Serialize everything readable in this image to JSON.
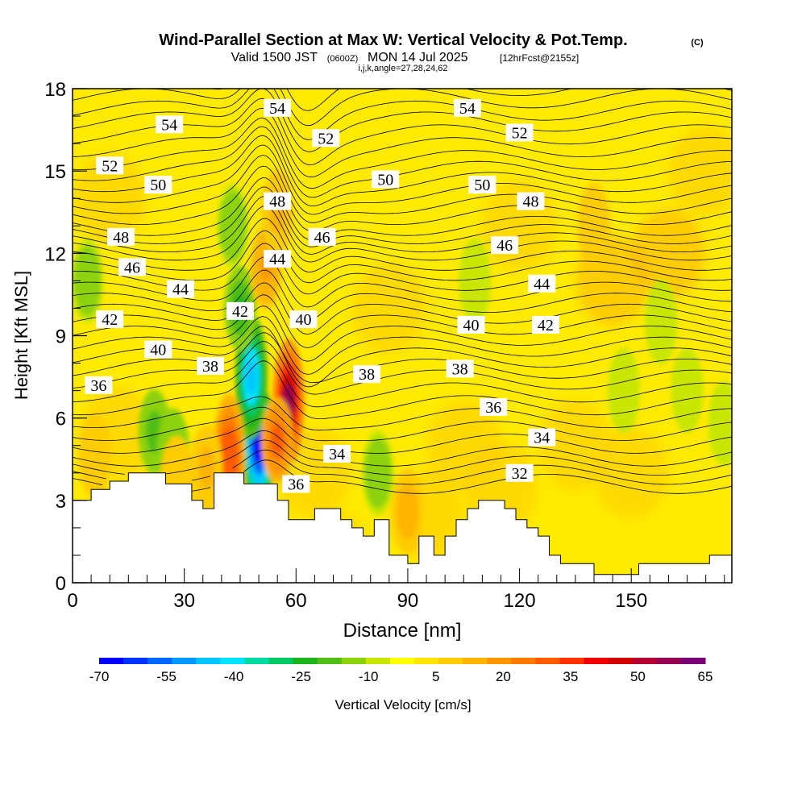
{
  "title": {
    "main": "Wind-Parallel Section at Max W: Vertical Velocity & Pot.Temp.",
    "copyright": "(C)",
    "valid_prefix": "Valid 1500 JST",
    "valid_utc": "(0600Z)",
    "valid_date": "MON 14 Jul 2025",
    "forecast": "[12hrFcst@2155z]",
    "grid_info": "i,j,k,angle=27,28,24,62"
  },
  "chart_data": {
    "type": "heatmap",
    "xlabel": "Distance [nm]",
    "ylabel": "Height [Kft MSL]",
    "xlim": [
      0,
      177
    ],
    "ylim": [
      0,
      18
    ],
    "x_ticks": [
      0,
      30,
      60,
      90,
      120,
      150
    ],
    "y_ticks": [
      0,
      3,
      6,
      9,
      12,
      15,
      18
    ],
    "colorbar": {
      "label": "Vertical Velocity [cm/s]",
      "min": -70,
      "max": 65,
      "ticks": [
        -70,
        -55,
        -40,
        -25,
        -10,
        5,
        20,
        35,
        50,
        65
      ],
      "colors": [
        "#0000ff",
        "#0033ff",
        "#0066ff",
        "#0099ff",
        "#00c8ff",
        "#00e5ff",
        "#00dca0",
        "#00c864",
        "#1eb41e",
        "#50be14",
        "#8cd20a",
        "#c8e600",
        "#ffff00",
        "#ffe600",
        "#ffcc00",
        "#ffb400",
        "#ff9600",
        "#ff7800",
        "#ff5a00",
        "#ff3200",
        "#f00000",
        "#d20000",
        "#b40032",
        "#960050",
        "#780078"
      ]
    },
    "terrain_kft": [
      [
        0,
        3
      ],
      [
        5,
        3
      ],
      [
        5,
        3.4
      ],
      [
        10,
        3.4
      ],
      [
        10,
        3.7
      ],
      [
        15,
        3.7
      ],
      [
        15,
        4
      ],
      [
        25,
        4
      ],
      [
        25,
        3.6
      ],
      [
        32,
        3.6
      ],
      [
        32,
        3
      ],
      [
        35,
        3
      ],
      [
        35,
        2.7
      ],
      [
        38,
        2.7
      ],
      [
        38,
        4
      ],
      [
        46,
        4
      ],
      [
        46,
        3.6
      ],
      [
        55,
        3.6
      ],
      [
        55,
        3
      ],
      [
        58,
        3
      ],
      [
        58,
        2.3
      ],
      [
        65,
        2.3
      ],
      [
        65,
        2.7
      ],
      [
        72,
        2.7
      ],
      [
        72,
        2.3
      ],
      [
        75,
        2.3
      ],
      [
        75,
        2
      ],
      [
        78,
        2
      ],
      [
        78,
        1.7
      ],
      [
        81,
        1.7
      ],
      [
        81,
        2.3
      ],
      [
        85,
        2.3
      ],
      [
        85,
        1
      ],
      [
        90,
        1
      ],
      [
        90,
        0.7
      ],
      [
        93,
        0.7
      ],
      [
        93,
        1.7
      ],
      [
        97,
        1.7
      ],
      [
        97,
        1
      ],
      [
        100,
        1
      ],
      [
        100,
        1.7
      ],
      [
        103,
        1.7
      ],
      [
        103,
        2.3
      ],
      [
        106,
        2.3
      ],
      [
        106,
        2.7
      ],
      [
        109,
        2.7
      ],
      [
        109,
        3
      ],
      [
        116,
        3
      ],
      [
        116,
        2.7
      ],
      [
        119,
        2.7
      ],
      [
        119,
        2.3
      ],
      [
        122,
        2.3
      ],
      [
        122,
        2
      ],
      [
        125,
        2
      ],
      [
        125,
        1.7
      ],
      [
        128,
        1.7
      ],
      [
        128,
        1
      ],
      [
        131,
        1
      ],
      [
        131,
        0.7
      ],
      [
        140,
        0.7
      ],
      [
        140,
        0.3
      ],
      [
        152,
        0.3
      ],
      [
        152,
        0.7
      ],
      [
        171,
        0.7
      ],
      [
        171,
        1
      ],
      [
        177,
        1
      ]
    ],
    "updrafts": [
      {
        "x": 58,
        "z": 6.6,
        "w": 55
      },
      {
        "x": 42,
        "z": 4.6,
        "w": 32
      },
      {
        "x": 55,
        "z": 5.2,
        "w": 30
      },
      {
        "x": 52,
        "z": 11.5,
        "w": 18
      },
      {
        "x": 55,
        "z": 13.5,
        "w": 12
      },
      {
        "x": 90,
        "z": 2.6,
        "w": 15
      },
      {
        "x": 36,
        "z": 4.2,
        "w": 12
      },
      {
        "x": 28,
        "z": 3.8,
        "w": 10
      },
      {
        "x": 140,
        "z": 13,
        "w": 10
      },
      {
        "x": 6,
        "z": 4.6,
        "w": 10
      }
    ],
    "downdrafts": [
      {
        "x": 50,
        "z": 5,
        "w": -68
      },
      {
        "x": 48,
        "z": 7.5,
        "w": -45
      },
      {
        "x": 45,
        "z": 10,
        "w": -22
      },
      {
        "x": 43,
        "z": 13,
        "w": -12
      },
      {
        "x": 22,
        "z": 5.5,
        "w": -20
      },
      {
        "x": 27,
        "z": 4.8,
        "w": -14
      },
      {
        "x": 4,
        "z": 11,
        "w": -12
      },
      {
        "x": 82,
        "z": 4,
        "w": -12
      },
      {
        "x": 108,
        "z": 11,
        "w": -10
      },
      {
        "x": 165,
        "z": 7,
        "w": -10
      },
      {
        "x": 148,
        "z": 7,
        "w": -9
      },
      {
        "x": 158,
        "z": 9.5,
        "w": -7
      },
      {
        "x": 175,
        "z": 5.8,
        "w": -7
      }
    ],
    "isentropes": [
      {
        "value": 32,
        "label_at": [
          120,
          4
        ],
        "baseline_z": 3.6
      },
      {
        "value": 34,
        "label_at": [
          126,
          5.3
        ],
        "baseline_z": 4.6
      },
      {
        "value": 36,
        "label_at": [
          9,
          7.2
        ],
        "baseline_z": 6.0
      },
      {
        "value": 38,
        "label_at": [
          37,
          8
        ],
        "baseline_z": 7.4
      },
      {
        "value": 40,
        "label_at": [
          23,
          8.5
        ],
        "baseline_z": 8.6
      },
      {
        "value": 42,
        "label_at": [
          17,
          9.6
        ],
        "baseline_z": 9.8
      },
      {
        "value": 44,
        "label_at": [
          20,
          11
        ],
        "baseline_z": 11.0
      },
      {
        "value": 46,
        "label_at": [
          16,
          11.5
        ],
        "baseline_z": 12.1
      },
      {
        "value": 48,
        "label_at": [
          13,
          12.6
        ],
        "baseline_z": 13.0
      },
      {
        "value": 50,
        "label_at": [
          23,
          14.5
        ],
        "baseline_z": 14.2
      },
      {
        "value": 52,
        "label_at": [
          10,
          15.2
        ],
        "baseline_z": 15.4
      },
      {
        "value": 54,
        "label_at": [
          26,
          16.7
        ],
        "baseline_z": 16.8
      }
    ],
    "contour_labels": [
      {
        "text": "54",
        "x": 26,
        "z": 16.7
      },
      {
        "text": "54",
        "x": 55,
        "z": 17.3
      },
      {
        "text": "54",
        "x": 106,
        "z": 17.3
      },
      {
        "text": "52",
        "x": 10,
        "z": 15.2
      },
      {
        "text": "52",
        "x": 68,
        "z": 16.2
      },
      {
        "text": "52",
        "x": 120,
        "z": 16.4
      },
      {
        "text": "50",
        "x": 23,
        "z": 14.5
      },
      {
        "text": "50",
        "x": 84,
        "z": 14.7
      },
      {
        "text": "50",
        "x": 110,
        "z": 14.5
      },
      {
        "text": "48",
        "x": 13,
        "z": 12.6
      },
      {
        "text": "48",
        "x": 55,
        "z": 13.9
      },
      {
        "text": "48",
        "x": 123,
        "z": 13.9
      },
      {
        "text": "46",
        "x": 16,
        "z": 11.5
      },
      {
        "text": "46",
        "x": 67,
        "z": 12.6
      },
      {
        "text": "46",
        "x": 116,
        "z": 12.3
      },
      {
        "text": "44",
        "x": 29,
        "z": 10.7
      },
      {
        "text": "44",
        "x": 55,
        "z": 11.8
      },
      {
        "text": "44",
        "x": 126,
        "z": 10.9
      },
      {
        "text": "42",
        "x": 10,
        "z": 9.6
      },
      {
        "text": "42",
        "x": 45,
        "z": 9.9
      },
      {
        "text": "42",
        "x": 127,
        "z": 9.4
      },
      {
        "text": "40",
        "x": 23,
        "z": 8.5
      },
      {
        "text": "40",
        "x": 62,
        "z": 9.6
      },
      {
        "text": "40",
        "x": 107,
        "z": 9.4
      },
      {
        "text": "38",
        "x": 37,
        "z": 7.9
      },
      {
        "text": "38",
        "x": 79,
        "z": 7.6
      },
      {
        "text": "38",
        "x": 104,
        "z": 7.8
      },
      {
        "text": "36",
        "x": 7,
        "z": 7.2
      },
      {
        "text": "36",
        "x": 60,
        "z": 3.6
      },
      {
        "text": "36",
        "x": 113,
        "z": 6.4
      },
      {
        "text": "34",
        "x": 71,
        "z": 4.7
      },
      {
        "text": "34",
        "x": 126,
        "z": 5.3
      },
      {
        "text": "32",
        "x": 120,
        "z": 4.0
      }
    ]
  }
}
